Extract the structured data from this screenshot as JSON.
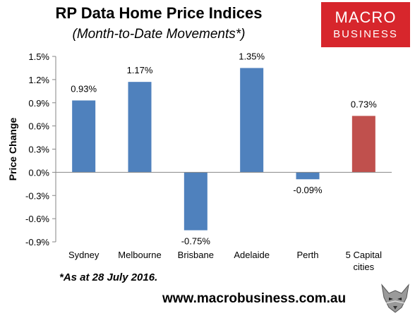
{
  "header": {
    "title": "RP Data Home Price Indices",
    "subtitle": "(Month-to-Date Movements*)"
  },
  "logo": {
    "line1": "MACRO",
    "line2": "BUSINESS"
  },
  "footnote": "*As at 28 July 2016.",
  "website": "www.macrobusiness.com.au",
  "colors": {
    "bar": "#4f81bd",
    "highlight": "#c0504d",
    "logo": "#d7262c"
  },
  "chart_data": {
    "type": "bar",
    "categories": [
      "Sydney",
      "Melbourne",
      "Brisbane",
      "Adelaide",
      "Perth",
      "5 Capital cities"
    ],
    "values": [
      0.93,
      1.17,
      -0.75,
      1.35,
      -0.09,
      0.73
    ],
    "data_labels": [
      "0.93%",
      "1.17%",
      "-0.75%",
      "1.35%",
      "-0.09%",
      "0.73%"
    ],
    "highlight_index": 5,
    "ylabel": "Price Change",
    "ylim": [
      -0.9,
      1.5
    ],
    "yticks": [
      -0.9,
      -0.6,
      -0.3,
      0.0,
      0.3,
      0.6,
      0.9,
      1.2,
      1.5
    ],
    "ytick_labels": [
      "-0.9%",
      "-0.6%",
      "-0.3%",
      "0.0%",
      "0.3%",
      "0.6%",
      "0.9%",
      "1.2%",
      "1.5%"
    ],
    "grid": false,
    "legend": "none"
  }
}
